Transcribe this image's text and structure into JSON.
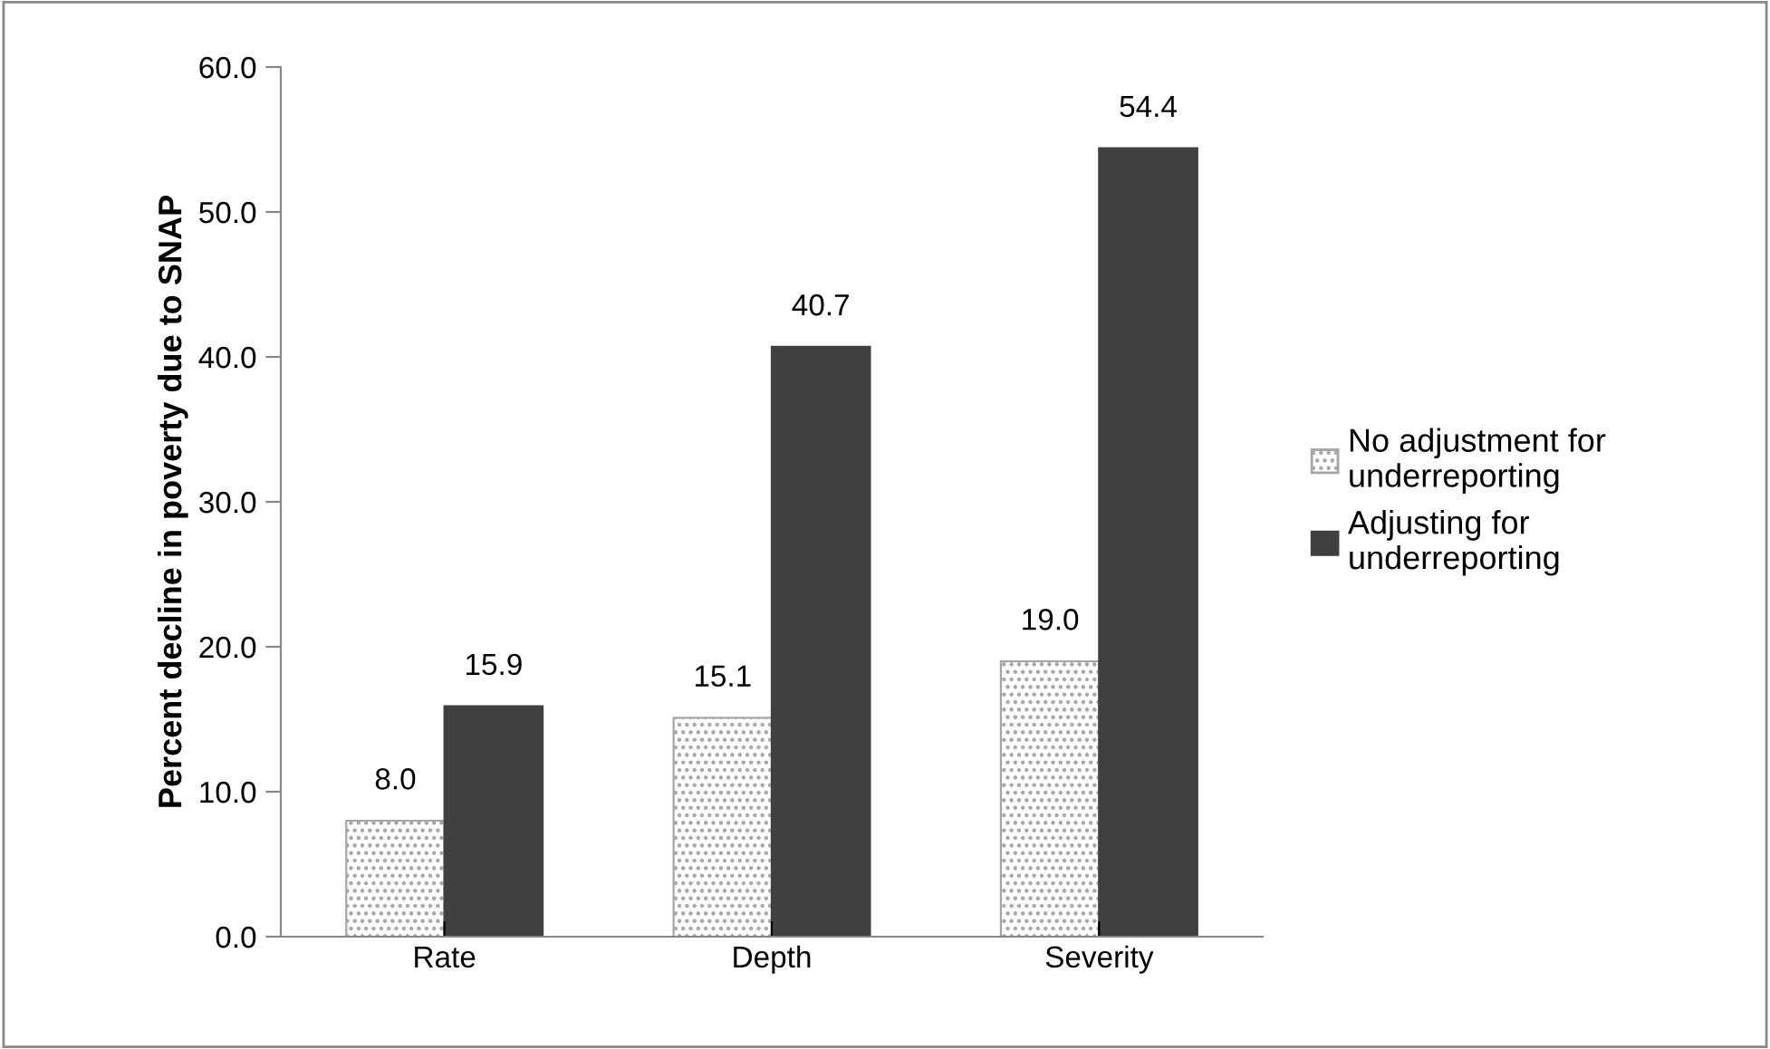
{
  "chart_data": {
    "type": "bar",
    "ylabel": "Percent decline in poverty due to SNAP",
    "categories": [
      "Rate",
      "Depth",
      "Severity"
    ],
    "series": [
      {
        "name": "No adjustment for underreporting",
        "color": "#a6a6a6",
        "values": [
          8.0,
          15.1,
          19.0
        ],
        "value_labels": [
          "8.0",
          "15.1",
          "19.0"
        ]
      },
      {
        "name": "Adjusting for underreporting",
        "color": "#404040",
        "values": [
          15.9,
          40.7,
          54.4
        ],
        "value_labels": [
          "15.9",
          "40.7",
          "54.4"
        ]
      }
    ],
    "ylim": [
      0,
      60
    ],
    "yticks": [
      {
        "value": 0,
        "label": "0.0"
      },
      {
        "value": 10,
        "label": "10.0"
      },
      {
        "value": 20,
        "label": "20.0"
      },
      {
        "value": 30,
        "label": "30.0"
      },
      {
        "value": 40,
        "label": "40.0"
      },
      {
        "value": 50,
        "label": "50.0"
      },
      {
        "value": 60,
        "label": "60.0"
      }
    ],
    "legend": "right",
    "grid": false
  }
}
